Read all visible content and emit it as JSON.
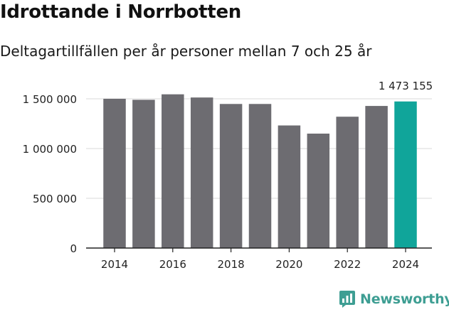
{
  "title": "Idrottande i Norrbotten",
  "subtitle": "Deltagartillfällen per år personer mellan 7 och 25 år",
  "brand": {
    "name": "Newsworthy"
  },
  "colors": {
    "bar": "#6d6c71",
    "highlight": "#10a59a",
    "grid": "#d9d9d9",
    "axis": "#222222",
    "brand": "#3e9e93"
  },
  "chart_data": {
    "type": "bar",
    "title": "Idrottande i Norrbotten",
    "subtitle": "Deltagartillfällen per år personer mellan 7 och 25 år",
    "categories": [
      "2014",
      "2015",
      "2016",
      "2017",
      "2018",
      "2019",
      "2020",
      "2021",
      "2022",
      "2023",
      "2024"
    ],
    "values": [
      1500000,
      1490000,
      1545000,
      1513000,
      1448000,
      1448000,
      1232000,
      1150000,
      1320000,
      1428000,
      1473155
    ],
    "highlight_index": 10,
    "highlight_label": "1 473 155",
    "xticks": [
      "2014",
      "2016",
      "2018",
      "2020",
      "2022",
      "2024"
    ],
    "yticks": [
      0,
      500000,
      1000000,
      1500000
    ],
    "ytick_labels": [
      "0",
      "500 000",
      "1 000 000",
      "1 500 000"
    ],
    "ylim": [
      0,
      1600000
    ],
    "xlabel": "",
    "ylabel": "",
    "grid": true
  }
}
